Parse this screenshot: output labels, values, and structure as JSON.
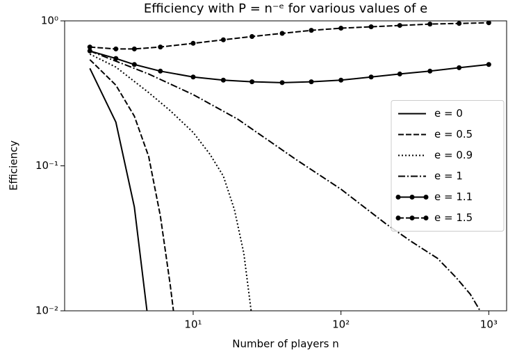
{
  "chart_data": {
    "type": "line",
    "title": "Efficiency with P = n⁻ᵉ for various values of e",
    "xlabel": "Number of players n",
    "ylabel": "Efficiency",
    "xscale": "log",
    "yscale": "log",
    "xlim": [
      1.35,
      1320
    ],
    "ylim": [
      0.01,
      1
    ],
    "xticks": [
      {
        "value": 10,
        "label": "10¹"
      },
      {
        "value": 100,
        "label": "10²"
      },
      {
        "value": 1000,
        "label": "10³"
      }
    ],
    "yticks": [
      {
        "value": 0.01,
        "label": "10⁻²"
      },
      {
        "value": 0.1,
        "label": "10⁻¹"
      },
      {
        "value": 1,
        "label": "10⁰"
      }
    ],
    "legend": "center right",
    "series": [
      {
        "name": "e = 0",
        "color": "#000000",
        "dash": "solid",
        "marker": false,
        "x": [
          2,
          3,
          4,
          5
        ],
        "values": [
          0.47,
          0.2,
          0.052,
          0.008
        ]
      },
      {
        "name": "e = 0.5",
        "color": "#000000",
        "dash": "dashed",
        "marker": false,
        "x": [
          2,
          3,
          4,
          5,
          6,
          7,
          8
        ],
        "values": [
          0.54,
          0.36,
          0.22,
          0.116,
          0.045,
          0.015,
          0.005
        ]
      },
      {
        "name": "e = 0.9",
        "color": "#000000",
        "dash": "dotted",
        "marker": false,
        "x": [
          2,
          3,
          5,
          7,
          10,
          13,
          16,
          19,
          22,
          25
        ],
        "values": [
          0.59,
          0.48,
          0.32,
          0.24,
          0.17,
          0.12,
          0.085,
          0.05,
          0.025,
          0.009
        ]
      },
      {
        "name": "e = 1",
        "color": "#000000",
        "dash": "dashdot",
        "marker": false,
        "x": [
          2,
          5,
          10,
          20,
          50,
          100,
          200,
          300,
          450,
          600,
          750,
          900
        ],
        "values": [
          0.62,
          0.43,
          0.31,
          0.21,
          0.11,
          0.069,
          0.04,
          0.03,
          0.023,
          0.017,
          0.013,
          0.0095
        ]
      },
      {
        "name": "e = 1.1",
        "color": "#000000",
        "dash": "solid",
        "marker": true,
        "x": [
          2,
          3,
          4,
          6,
          10,
          16,
          25,
          40,
          63,
          100,
          160,
          250,
          400,
          630,
          1000
        ],
        "values": [
          0.62,
          0.55,
          0.5,
          0.45,
          0.41,
          0.39,
          0.38,
          0.375,
          0.38,
          0.39,
          0.41,
          0.43,
          0.45,
          0.475,
          0.5
        ]
      },
      {
        "name": "e = 1.5",
        "color": "#000000",
        "dash": "dashed",
        "marker": true,
        "x": [
          2,
          3,
          4,
          6,
          10,
          16,
          25,
          40,
          63,
          100,
          160,
          250,
          400,
          630,
          1000
        ],
        "values": [
          0.66,
          0.64,
          0.64,
          0.66,
          0.7,
          0.74,
          0.78,
          0.82,
          0.86,
          0.89,
          0.91,
          0.93,
          0.95,
          0.96,
          0.97
        ]
      }
    ]
  }
}
